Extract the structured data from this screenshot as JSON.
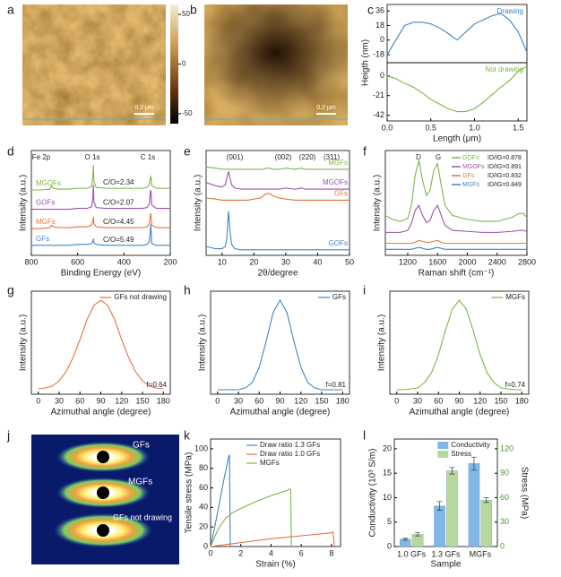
{
  "chart_data": [
    {
      "type": "image",
      "label": "a",
      "scale_bar": "0.2 μm",
      "ylim": [
        -60,
        60
      ],
      "yticks": [
        50,
        0,
        -50
      ]
    },
    {
      "type": "image",
      "label": "b",
      "scale_bar": "0.2 μm"
    },
    {
      "type": "line",
      "label": "c",
      "ylabel": "Heigth (nm)",
      "xlim": [
        0,
        1.6
      ],
      "ylim": [
        -28,
        44
      ],
      "yticks": [
        36,
        18,
        0,
        -18
      ],
      "x": [
        0,
        0.1,
        0.2,
        0.3,
        0.4,
        0.5,
        0.6,
        0.7,
        0.8,
        0.9,
        1.0,
        1.1,
        1.2,
        1.3,
        1.4,
        1.5,
        1.6
      ],
      "series": [
        {
          "name": "Drawing",
          "color": "#3d85c6",
          "values": [
            -18,
            0,
            18,
            22,
            22,
            20,
            15,
            8,
            0,
            10,
            20,
            25,
            30,
            33,
            25,
            10,
            -15
          ]
        }
      ]
    },
    {
      "type": "line",
      "xlabel": "Length (μm)",
      "xlim": [
        0,
        1.6
      ],
      "ylim": [
        -48,
        14
      ],
      "yticks": [
        0,
        -21,
        -42
      ],
      "xticks": [
        {
          "value": 0,
          "label": "0.0"
        },
        0.5,
        {
          "value": 1,
          "label": "1.0"
        },
        1.5
      ],
      "x": [
        0,
        0.1,
        0.2,
        0.3,
        0.4,
        0.5,
        0.6,
        0.7,
        0.8,
        0.9,
        1.0,
        1.1,
        1.2,
        1.3,
        1.4,
        1.5,
        1.6
      ],
      "series": [
        {
          "name": "Not drawing",
          "color": "#7db544",
          "values": [
            0,
            -3,
            -8,
            -12,
            -18,
            -25,
            -30,
            -35,
            -38,
            -38,
            -35,
            -28,
            -20,
            -12,
            -5,
            5,
            10
          ]
        }
      ]
    },
    {
      "type": "line",
      "label": "d",
      "xlabel": "Binding Energy (eV)",
      "ylabel": "Intensity (a.u.)",
      "xlim": [
        800,
        200
      ],
      "ylim": [
        0,
        125
      ],
      "xticks": [
        800,
        600,
        400,
        200
      ],
      "peak_labels": [
        "Fe 2p",
        "O 1s",
        "C 1s"
      ],
      "x": [
        800,
        760,
        720,
        712,
        705,
        680,
        640,
        600,
        560,
        540,
        534,
        532,
        530,
        520,
        480,
        440,
        400,
        360,
        320,
        300,
        290,
        286,
        284,
        280,
        260,
        240,
        220,
        200
      ],
      "series": [
        {
          "name": "MGOFs",
          "color": "#7db544",
          "note": "C/O=2.34",
          "values": [
            78,
            78,
            79,
            83,
            80,
            79,
            79,
            80,
            80,
            82,
            96,
            108,
            88,
            81,
            80,
            80,
            80,
            80,
            80,
            81,
            85,
            93,
            94,
            83,
            80,
            80,
            80,
            80
          ]
        },
        {
          "name": "GOFs",
          "color": "#9b4fae",
          "note": "C/O=2.07",
          "values": [
            55,
            55,
            55,
            55,
            55,
            55,
            55,
            56,
            56,
            58,
            70,
            84,
            64,
            57,
            56,
            56,
            56,
            56,
            56,
            57,
            62,
            76,
            78,
            60,
            56,
            56,
            56,
            56
          ]
        },
        {
          "name": "MGFs",
          "color": "#e3733b",
          "note": "C/O=4.45",
          "values": [
            32,
            32,
            33,
            36,
            34,
            33,
            33,
            34,
            34,
            36,
            42,
            46,
            38,
            34,
            33,
            33,
            33,
            33,
            33,
            34,
            38,
            48,
            50,
            36,
            33,
            33,
            33,
            33
          ]
        },
        {
          "name": "GFs",
          "color": "#3d85c6",
          "note": "C/O=5.49",
          "values": [
            12,
            12,
            12,
            12,
            12,
            12,
            12,
            13,
            13,
            14,
            17,
            20,
            15,
            13,
            12,
            12,
            12,
            12,
            12,
            13,
            16,
            30,
            37,
            14,
            12,
            12,
            12,
            12
          ]
        }
      ]
    },
    {
      "type": "line",
      "label": "e",
      "xlabel": "2θ/degree",
      "ylabel": "Intensity (a.u.)",
      "xlim": [
        5,
        50
      ],
      "ylim": [
        0,
        95
      ],
      "xticks": [
        10,
        20,
        30,
        40,
        50
      ],
      "peak_labels": [
        "(001)",
        "(002)",
        "(220)",
        "(311)"
      ],
      "x": [
        5,
        8,
        10,
        11,
        11.5,
        12,
        12.5,
        13,
        14,
        16,
        18,
        20,
        22,
        23,
        24,
        25,
        26,
        28,
        30,
        33,
        35,
        36,
        38,
        40,
        43,
        45,
        48,
        50
      ],
      "series": [
        {
          "name": "MGFs",
          "color": "#7db544",
          "values": [
            80,
            79,
            78,
            78,
            78,
            78,
            78,
            78,
            78,
            78,
            78,
            78,
            78,
            78,
            79,
            79,
            78,
            78,
            79,
            78,
            79,
            78,
            78,
            78,
            78,
            78,
            78,
            78
          ]
        },
        {
          "name": "MGOFs",
          "color": "#9b4fae",
          "values": [
            66,
            63,
            62,
            64,
            70,
            76,
            70,
            64,
            61,
            60,
            60,
            60,
            60,
            60,
            60,
            60,
            60,
            60,
            61,
            60,
            61,
            60,
            60,
            60,
            60,
            60,
            60,
            60
          ]
        },
        {
          "name": "GFs",
          "color": "#e3733b",
          "values": [
            52,
            51,
            50,
            50,
            50,
            50,
            50,
            50,
            50,
            50,
            50,
            51,
            52,
            54,
            56,
            56,
            54,
            52,
            51,
            50,
            50,
            50,
            50,
            50,
            50,
            50,
            50,
            50
          ]
        },
        {
          "name": "GOFs",
          "color": "#3d85c6",
          "values": [
            8,
            6,
            6,
            8,
            15,
            40,
            22,
            10,
            6,
            5,
            5,
            5,
            5,
            5,
            5,
            5,
            5,
            5,
            5,
            5,
            5,
            5,
            5,
            5,
            5,
            5,
            5,
            5
          ]
        }
      ]
    },
    {
      "type": "line",
      "label": "f",
      "xlabel": "Raman shift (cm⁻¹)",
      "ylabel": "Intensity (a.u.)",
      "xlim": [
        900,
        2800
      ],
      "ylim": [
        0,
        105
      ],
      "xticks": [
        1200,
        1600,
        2000,
        2400,
        2800
      ],
      "peak_labels": [
        "D",
        "G"
      ],
      "x": [
        900,
        1000,
        1100,
        1200,
        1250,
        1300,
        1350,
        1400,
        1450,
        1500,
        1550,
        1600,
        1650,
        1700,
        1800,
        2000,
        2200,
        2400,
        2600,
        2700,
        2750,
        2800
      ],
      "series": [
        {
          "name": "GOFs",
          "color": "#7db544",
          "note": "ID/IG=0.878",
          "values": [
            40,
            36,
            34,
            37,
            50,
            80,
            95,
            75,
            60,
            65,
            85,
            92,
            70,
            50,
            40,
            36,
            34,
            34,
            38,
            42,
            42,
            38
          ]
        },
        {
          "name": "MGOFs",
          "color": "#9b4fae",
          "note": "ID/IG=0.891",
          "values": [
            23,
            23,
            23,
            25,
            32,
            45,
            50,
            40,
            33,
            35,
            45,
            50,
            40,
            30,
            25,
            24,
            23,
            23,
            24,
            25,
            25,
            24
          ]
        },
        {
          "name": "GFs",
          "color": "#e3733b",
          "note": "ID/IG=0.832",
          "values": [
            12,
            12,
            12,
            12,
            12,
            13,
            15,
            14,
            13,
            13,
            14,
            15,
            13,
            12,
            12,
            12,
            12,
            12,
            12,
            12,
            12,
            12
          ]
        },
        {
          "name": "MGFs",
          "color": "#3d85c6",
          "note": "ID/IG=0.849",
          "values": [
            6,
            6,
            6,
            6,
            6,
            7,
            8,
            7,
            6,
            6,
            7,
            8,
            7,
            6,
            6,
            6,
            6,
            6,
            6,
            6,
            6,
            6
          ]
        }
      ]
    },
    {
      "type": "line",
      "label": "g",
      "xlabel": "Azimuthal angle (degree)",
      "ylabel": "Intensity (a.u.)",
      "xlim": [
        -10,
        190
      ],
      "ylim": [
        -0.05,
        1.1
      ],
      "xticks": [
        0,
        30,
        60,
        90,
        120,
        150,
        180
      ],
      "annotation": "f=0.64",
      "x": [
        0,
        10,
        20,
        30,
        40,
        50,
        60,
        70,
        80,
        90,
        100,
        110,
        120,
        130,
        140,
        150,
        160,
        170,
        180
      ],
      "series": [
        {
          "name": "GFs not drawing",
          "color": "#e3733b",
          "values": [
            0.01,
            0.02,
            0.04,
            0.1,
            0.2,
            0.36,
            0.56,
            0.78,
            0.94,
            1.0,
            0.94,
            0.78,
            0.56,
            0.36,
            0.2,
            0.1,
            0.04,
            0.02,
            0.01
          ]
        }
      ]
    },
    {
      "type": "line",
      "label": "h",
      "xlabel": "Azimuthal angle (degree)",
      "ylabel": "Intensity (a.u.)",
      "xlim": [
        -10,
        190
      ],
      "ylim": [
        -0.05,
        1.1
      ],
      "xticks": [
        0,
        30,
        60,
        90,
        120,
        150,
        180
      ],
      "annotation": "f=0.81",
      "x": [
        0,
        10,
        20,
        30,
        40,
        50,
        60,
        70,
        80,
        90,
        100,
        110,
        120,
        130,
        140,
        150,
        160,
        170,
        180
      ],
      "series": [
        {
          "name": "GFs",
          "color": "#3d85c6",
          "values": [
            0,
            0,
            0,
            0,
            0.02,
            0.08,
            0.25,
            0.54,
            0.86,
            1.0,
            0.86,
            0.54,
            0.25,
            0.08,
            0.02,
            0,
            0,
            0,
            0
          ]
        }
      ]
    },
    {
      "type": "line",
      "label": "i",
      "xlabel": "Azimuthal angle (degree)",
      "ylabel": "Intensity (a.u.)",
      "xlim": [
        -10,
        190
      ],
      "ylim": [
        -0.05,
        1.1
      ],
      "xticks": [
        0,
        30,
        60,
        90,
        120,
        150,
        180
      ],
      "annotation": "f=0.74",
      "x": [
        0,
        10,
        20,
        30,
        40,
        50,
        60,
        70,
        80,
        90,
        100,
        110,
        120,
        130,
        140,
        150,
        160,
        170,
        180
      ],
      "series": [
        {
          "name": "MGFs",
          "color": "#7db544",
          "values": [
            0,
            0,
            0.01,
            0.02,
            0.08,
            0.19,
            0.39,
            0.66,
            0.9,
            1.0,
            0.9,
            0.66,
            0.39,
            0.19,
            0.08,
            0.02,
            0.01,
            0,
            0
          ]
        }
      ]
    },
    {
      "type": "image",
      "label": "j",
      "labels": [
        "GFs",
        "MGFs",
        "GFs not drawing"
      ]
    },
    {
      "type": "line",
      "label": "k",
      "xlabel": "Strain (%)",
      "ylabel": "Tensile stress (MPa)",
      "xlim": [
        0,
        8.6
      ],
      "ylim": [
        0,
        110
      ],
      "xticks": [
        0,
        2,
        4,
        6,
        8
      ],
      "yticks": [
        0,
        20,
        40,
        60,
        80,
        100
      ],
      "series": [
        {
          "name": "Draw ratio 1.3 GFs",
          "color": "#3d85c6",
          "x": [
            0,
            0.3,
            0.6,
            0.9,
            1.2,
            1.25,
            1.3
          ],
          "values": [
            0,
            22,
            46,
            70,
            92,
            94,
            0
          ]
        },
        {
          "name": "Draw ratio 1.0 GFs",
          "color": "#e3733b",
          "x": [
            0,
            2,
            4,
            6,
            8,
            8.1,
            8.2
          ],
          "values": [
            0,
            4,
            8,
            11,
            14,
            15,
            0
          ]
        },
        {
          "name": "MGFs",
          "color": "#7db544",
          "x": [
            0,
            0.5,
            1,
            1.5,
            2,
            3,
            4,
            5,
            5.25,
            5.3,
            5.35
          ],
          "values": [
            0,
            18,
            29,
            35,
            39,
            46,
            52,
            57,
            59,
            58,
            0
          ]
        }
      ]
    },
    {
      "type": "bar",
      "label": "l",
      "xlabel": "Sample",
      "ylabel": "Conductivity (10³ S/m)",
      "y2label": "Stress (MPa)",
      "categories": [
        "1.0 GFs",
        "1.3 GFs",
        "MGFs"
      ],
      "ylim": [
        0,
        22
      ],
      "yticks": [
        0,
        5,
        10,
        15,
        20
      ],
      "y2lim": [
        0,
        132
      ],
      "y2ticks": [
        0,
        30,
        60,
        90,
        120
      ],
      "series": [
        {
          "name": "Conductivity",
          "color": "#7fb7e6",
          "values": [
            1.5,
            8.3,
            17
          ],
          "errors": [
            0.2,
            0.9,
            1.3
          ]
        },
        {
          "name": "Stress",
          "color": "#b5d99c",
          "axis": "y2",
          "values": [
            15,
            93,
            57
          ],
          "errors": [
            2,
            4,
            3
          ]
        }
      ]
    }
  ]
}
